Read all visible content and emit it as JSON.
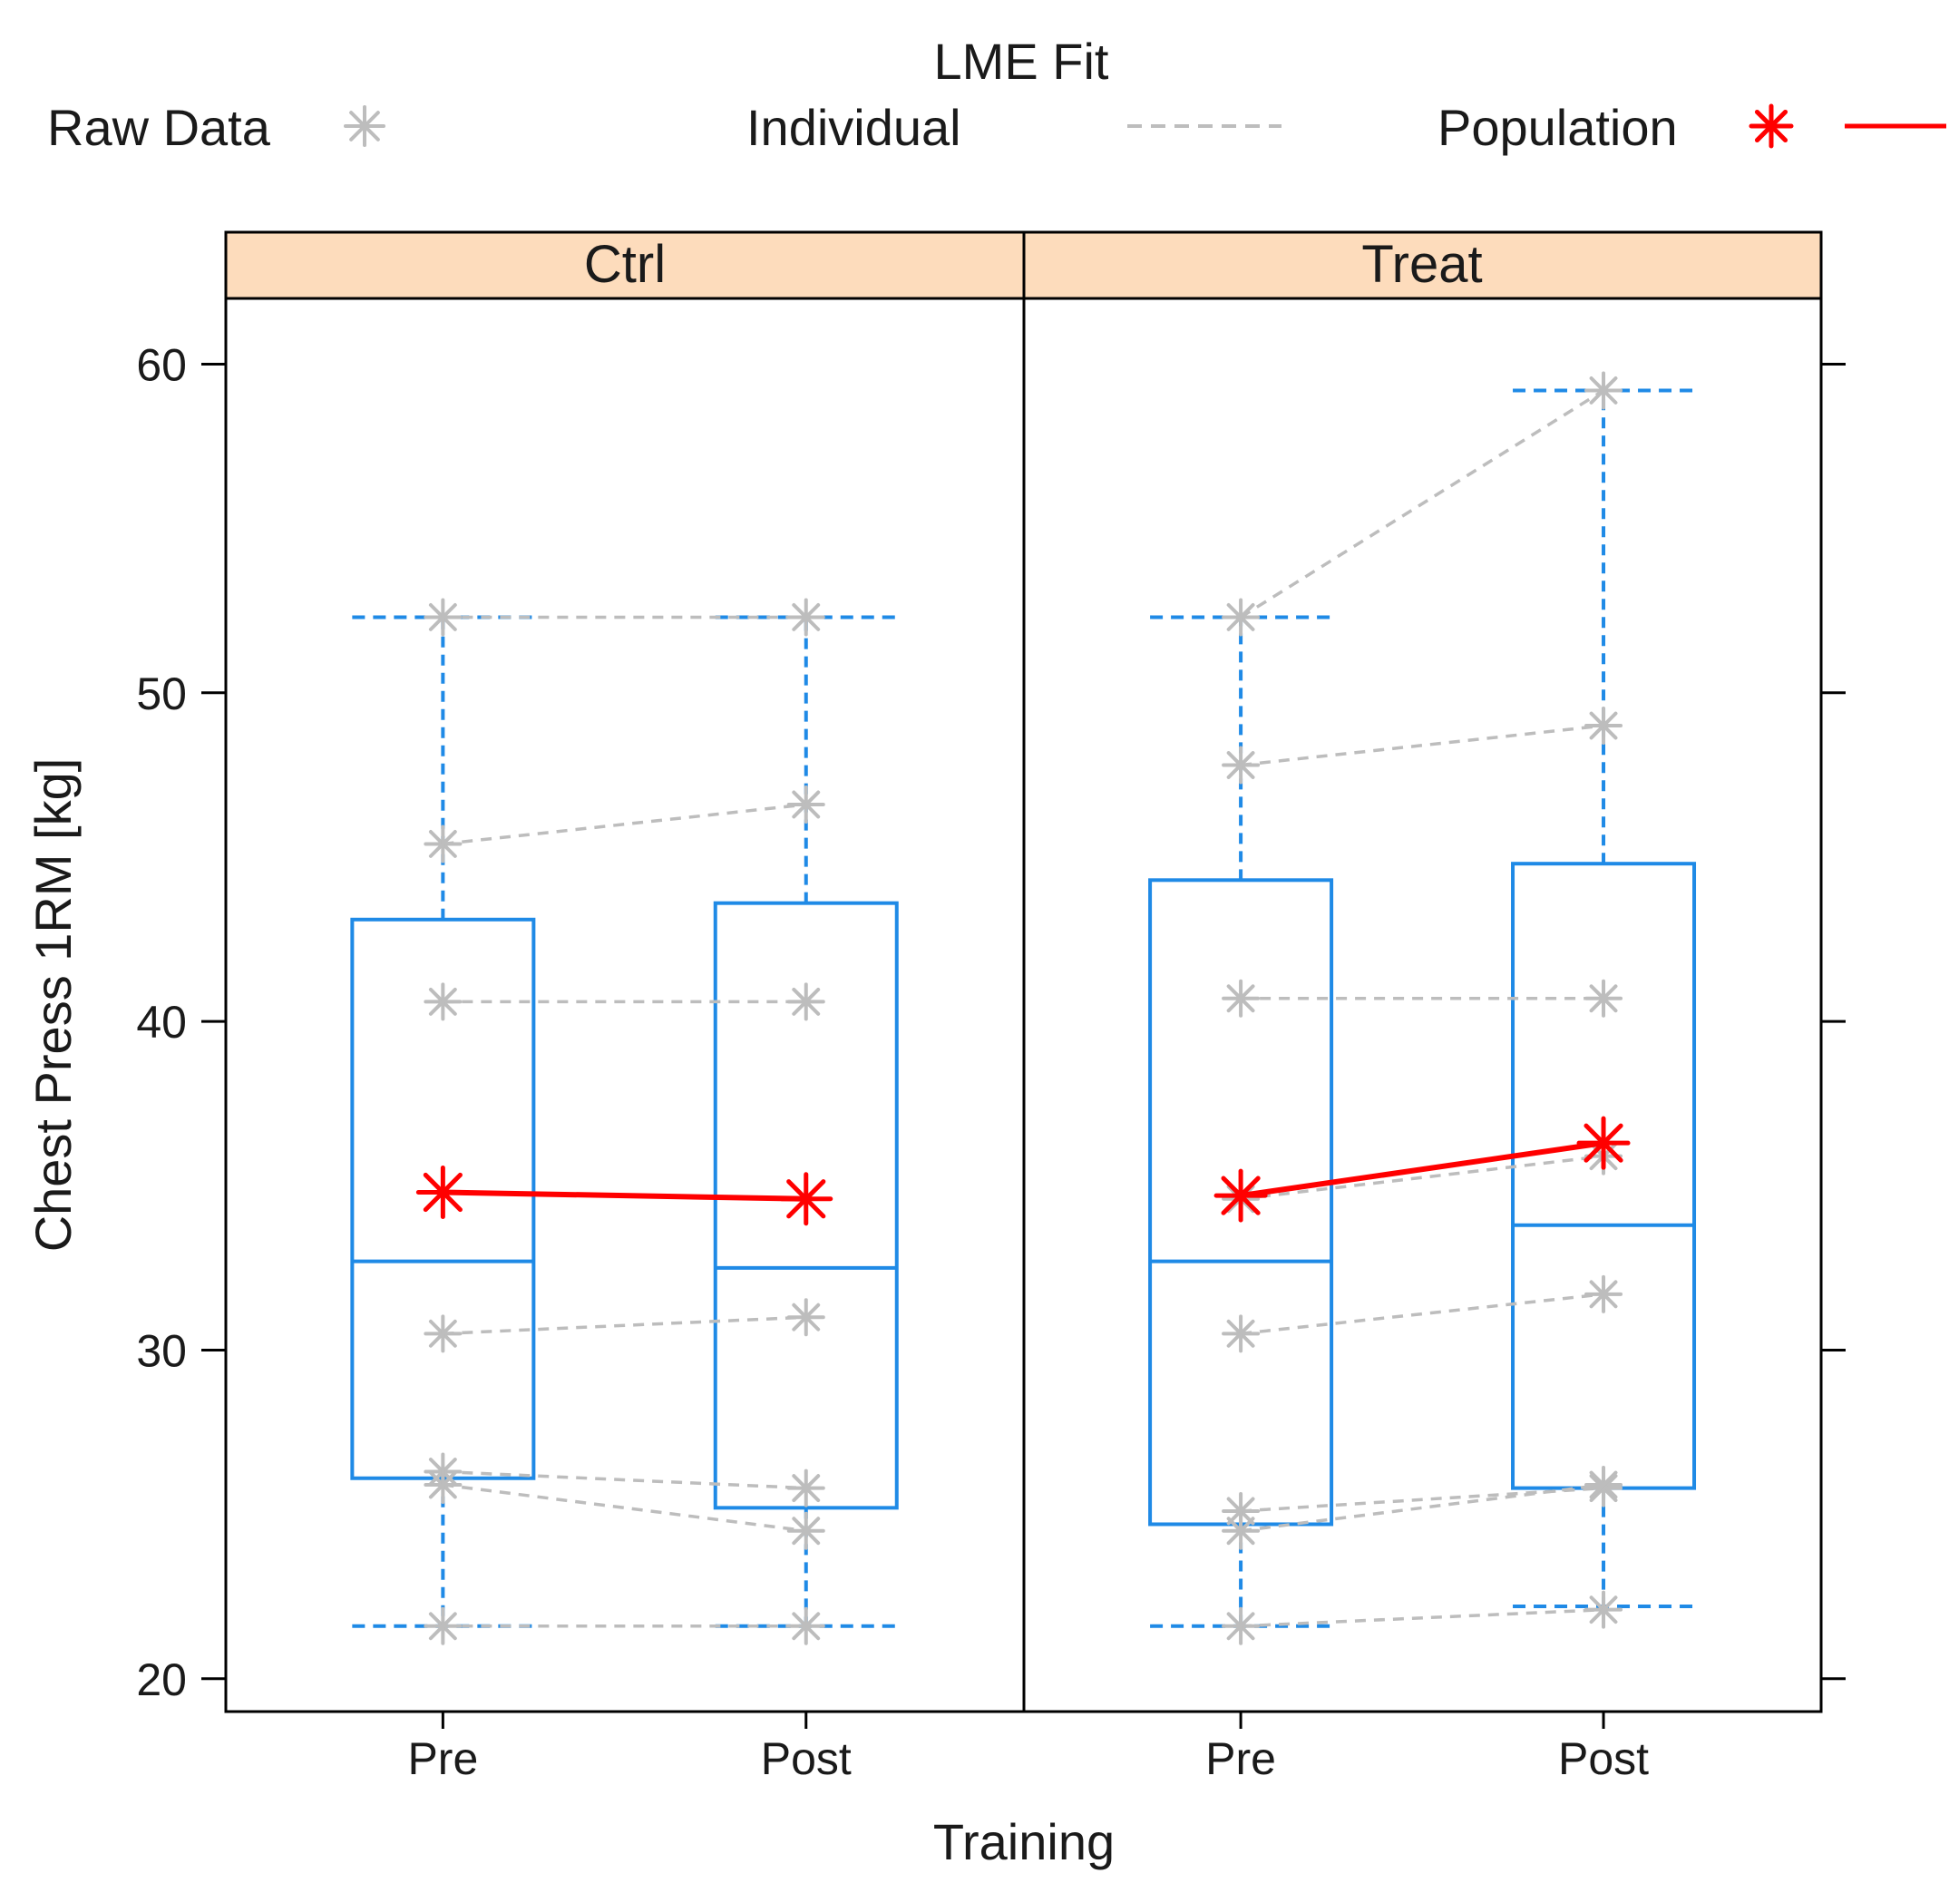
{
  "chart_data": {
    "type": "box",
    "legend": {
      "raw_label": "Raw Data",
      "title": "LME Fit",
      "individual_label": "Individual",
      "population_label": "Population"
    },
    "ylabel": "Chest Press 1RM [kg]",
    "xlabel": "Training",
    "ylim": [
      19,
      62
    ],
    "yticks": [
      20,
      30,
      40,
      50,
      60
    ],
    "categories": [
      "Pre",
      "Post"
    ],
    "colors": {
      "box": "#1f8ae6",
      "raw": "#bdbdbd",
      "population": "#ff0000",
      "strip": "#fddcbc"
    },
    "panels": [
      {
        "name": "Ctrl",
        "boxes": [
          {
            "whisker_low": 21.6,
            "q1": 26.1,
            "median": 32.7,
            "q3": 43.1,
            "whisker_high": 52.3
          },
          {
            "whisker_low": 21.6,
            "q1": 25.2,
            "median": 32.5,
            "q3": 43.6,
            "whisker_high": 52.3
          }
        ],
        "individuals": [
          [
            52.3,
            52.3
          ],
          [
            45.4,
            46.6
          ],
          [
            40.6,
            40.6
          ],
          [
            30.5,
            31.0
          ],
          [
            26.3,
            25.8
          ],
          [
            25.9,
            24.5
          ],
          [
            21.6,
            21.6
          ]
        ],
        "population": [
          34.8,
          34.6
        ]
      },
      {
        "name": "Treat",
        "boxes": [
          {
            "whisker_low": 21.6,
            "q1": 24.7,
            "median": 32.7,
            "q3": 44.3,
            "whisker_high": 52.3
          },
          {
            "whisker_low": 22.2,
            "q1": 25.8,
            "median": 33.8,
            "q3": 44.8,
            "whisker_high": 59.2
          }
        ],
        "individuals": [
          [
            52.3,
            59.2
          ],
          [
            47.8,
            49.0
          ],
          [
            40.7,
            40.7
          ],
          [
            30.5,
            31.7
          ],
          [
            25.1,
            25.8
          ],
          [
            24.5,
            25.9
          ],
          [
            21.6,
            22.1
          ],
          [
            34.6,
            35.9
          ]
        ],
        "population": [
          34.7,
          36.3
        ]
      }
    ]
  }
}
